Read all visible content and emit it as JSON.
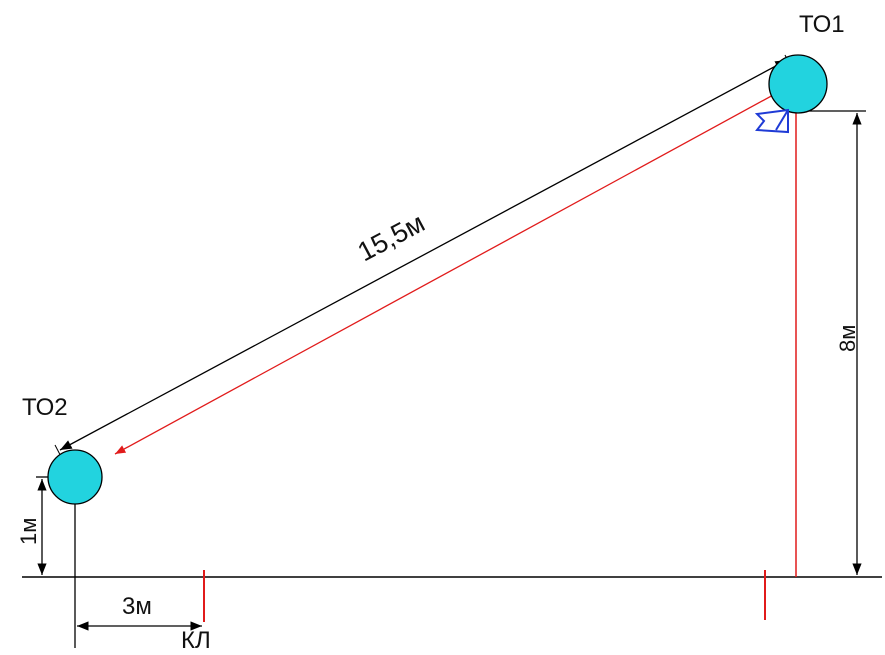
{
  "points": {
    "to1_label": "ТО1",
    "to2_label": "ТО2",
    "kl_label": "КЛ"
  },
  "dimensions": {
    "span_label": "15,5м",
    "height_to1_label": "8м",
    "height_to2_label": "1м",
    "offset_kl_label": "3м"
  },
  "colors": {
    "node_fill": "#22d3df",
    "dimension_line": "#000000",
    "cable_line": "#e11b1b",
    "marker": "#1f3bd6"
  }
}
